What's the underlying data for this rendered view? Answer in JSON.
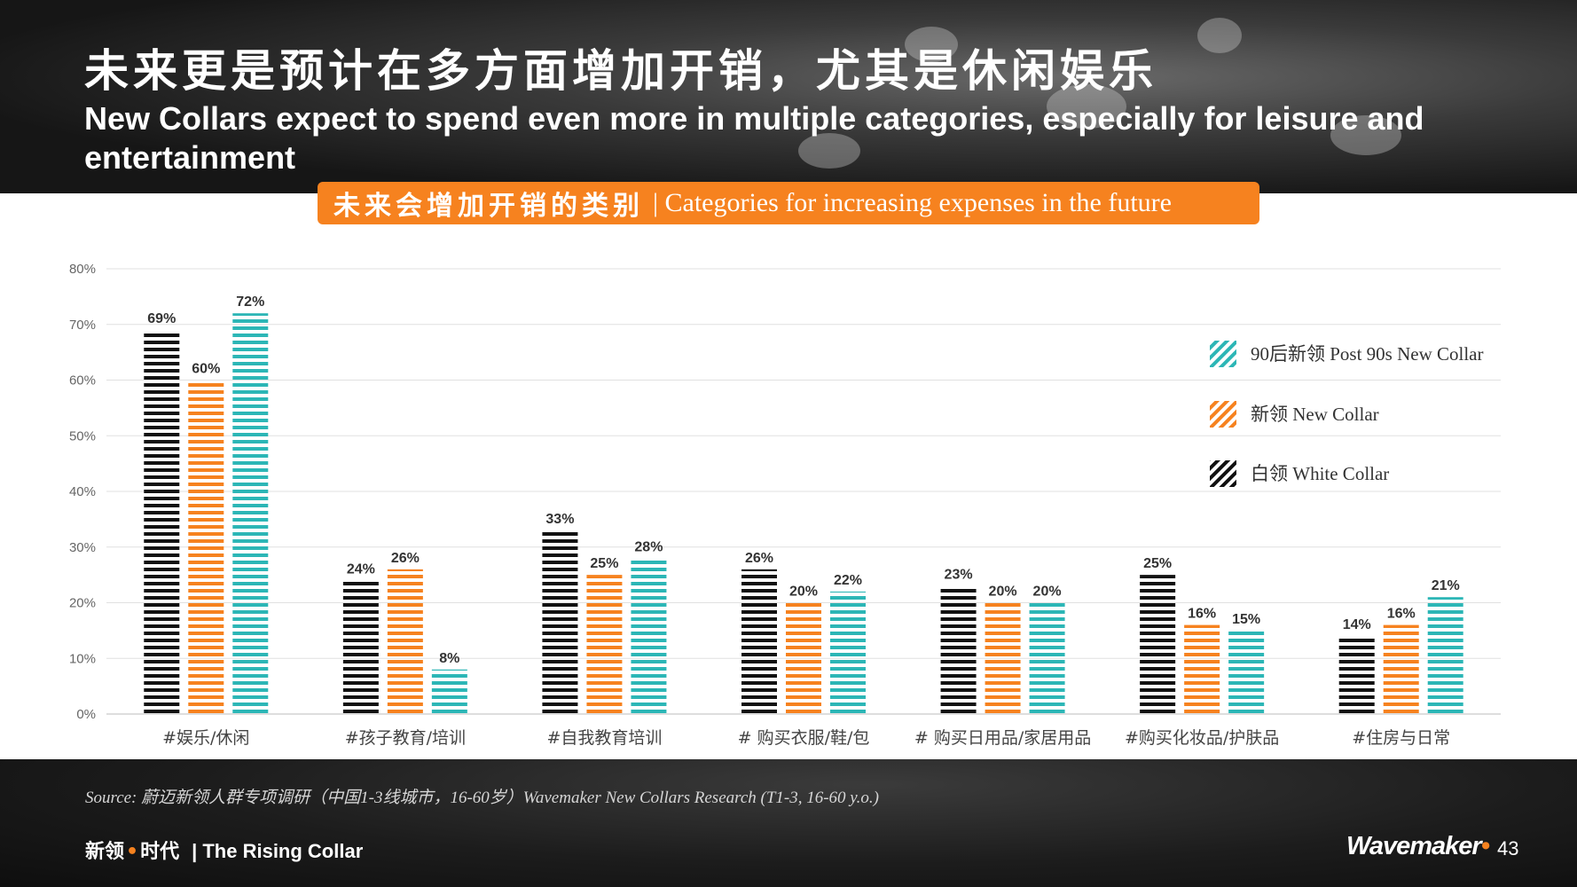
{
  "header": {
    "title_cn": "未来更是预计在多方面增加开销，尤其是休闲娱乐",
    "title_en": "New Collars expect to spend even more in multiple categories, especially for leisure and entertainment"
  },
  "banner": {
    "cn": "未来会增加开销的类别",
    "en": "| Categories for increasing expenses in the future"
  },
  "chart_data": {
    "type": "bar",
    "categories": [
      "#娱乐/休闲",
      "#孩子教育/培训",
      "#自我教育培训",
      "# 购买衣服/鞋/包",
      "# 购买日用品/家居用品",
      "#购买化妆品/护肤品",
      "#住房与日常"
    ],
    "series": [
      {
        "name": "白领 White Collar",
        "color": "#111111",
        "values": [
          69,
          24,
          33,
          26,
          23,
          25,
          14
        ]
      },
      {
        "name": "新领 New Collar",
        "color": "#f6821f",
        "values": [
          60,
          26,
          25,
          20,
          20,
          16,
          16
        ]
      },
      {
        "name": "90后新领 Post 90s New Collar",
        "color": "#2cb6b6",
        "values": [
          72,
          8,
          28,
          22,
          20,
          15,
          21
        ]
      }
    ],
    "value_labels": [
      [
        "69%",
        "24%",
        "33%",
        "26%",
        "23%",
        "25%",
        "14%"
      ],
      [
        "60%",
        "26%",
        "25%",
        "20%",
        "20%",
        "16%",
        "16%"
      ],
      [
        "72%",
        "8%",
        "28%",
        "22%",
        "20%",
        "15%",
        "21%"
      ]
    ],
    "yticks": [
      "0%",
      "10%",
      "20%",
      "30%",
      "40%",
      "50%",
      "60%",
      "70%",
      "80%"
    ],
    "ylim": [
      0,
      80
    ],
    "grid": true,
    "legend": {
      "placement": "right",
      "order": [
        2,
        1,
        0
      ],
      "labels": [
        "90后新领 Post 90s New Collar",
        "新领 New Collar",
        "白领 White Collar"
      ]
    }
  },
  "footer": {
    "source": "Source: 蔚迈新领人群专项调研（中国1-3线城市，16-60岁）Wavemaker New Collars Research (T1-3, 16-60 y.o.)",
    "brand_cn_1": "新领",
    "brand_dot": "•",
    "brand_cn_2": "时代",
    "brand_en": "| The Rising Collar",
    "logo": "Wavemaker",
    "logo_dot": "•",
    "page": "43"
  }
}
